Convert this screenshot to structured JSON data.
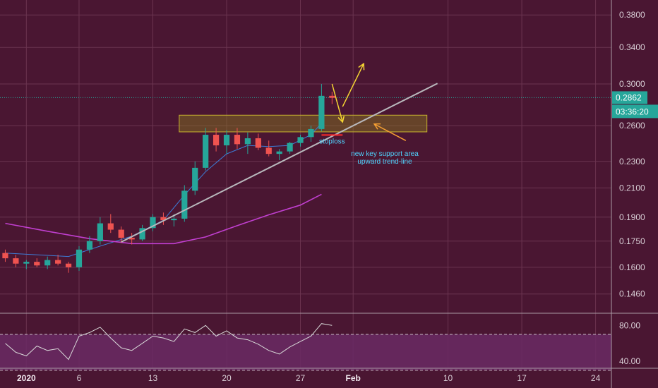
{
  "chart_data": [
    {
      "type": "candlestick",
      "title": "",
      "x_axis": {
        "ticks": [
          "2020",
          "6",
          "13",
          "20",
          "27",
          "Feb",
          "10",
          "17",
          "24"
        ],
        "range": [
          "2019-12-30",
          "2020-02-26"
        ]
      },
      "y_axis": {
        "scale": "log",
        "ticks": [
          0.38,
          0.34,
          0.3,
          0.26,
          0.23,
          0.21,
          0.19,
          0.175,
          0.16,
          0.146
        ],
        "tick_labels": [
          "0.3800",
          "0.3400",
          "0.3000",
          "0.2600",
          "0.2300",
          "0.2100",
          "0.1900",
          "0.1750",
          "0.1600",
          "0.1460"
        ],
        "range": [
          0.137,
          0.4
        ]
      },
      "last_price": {
        "value": 0.2862,
        "label": "0.2862",
        "countdown": "03:36:20",
        "color": "#26a69a"
      },
      "moving_averages": [
        {
          "color": "#3d7cd6",
          "points": [
            [
              "2019-12-30",
              0.168
            ],
            [
              "2020-01-05",
              0.166
            ],
            [
              "2020-01-08",
              0.172
            ],
            [
              "2020-01-11",
              0.178
            ],
            [
              "2020-01-14",
              0.188
            ],
            [
              "2020-01-16",
              0.205
            ],
            [
              "2020-01-18",
              0.222
            ],
            [
              "2020-01-20",
              0.236
            ],
            [
              "2020-01-22",
              0.243
            ],
            [
              "2020-01-24",
              0.242
            ],
            [
              "2020-01-26",
              0.243
            ],
            [
              "2020-01-28",
              0.252
            ],
            [
              "2020-01-29",
              0.262
            ]
          ]
        },
        {
          "color": "#c03fcf",
          "points": [
            [
              "2019-12-30",
              0.186
            ],
            [
              "2020-01-03",
              0.181
            ],
            [
              "2020-01-07",
              0.1765
            ],
            [
              "2020-01-11",
              0.1735
            ],
            [
              "2020-01-15",
              0.1735
            ],
            [
              "2020-01-18",
              0.1775
            ],
            [
              "2020-01-21",
              0.1845
            ],
            [
              "2020-01-24",
              0.1915
            ],
            [
              "2020-01-27",
              0.198
            ],
            [
              "2020-01-29",
              0.2055
            ]
          ]
        }
      ],
      "trend_line": {
        "from": [
          "2020-01-10",
          0.1745
        ],
        "to": [
          "2020-02-09",
          0.3005
        ],
        "color": "#b9b9bd"
      },
      "support_zone": {
        "date_from": "2020-01-16",
        "date_to": "2020-02-08",
        "price_low": 0.2545,
        "price_high": 0.2695
      },
      "stoploss": {
        "label": "stoploss",
        "price": 0.2518,
        "date_from": "2020-01-29",
        "date_to": "2020-01-31"
      },
      "annotations": [
        {
          "lines": [
            "new key support area",
            "upward trend-line"
          ],
          "anchor_date": "2020-02-04",
          "price": 0.2345
        }
      ],
      "arrows": [
        {
          "color": "#f5d533",
          "from": [
            "2020-01-30",
            0.3
          ],
          "to": [
            "2020-01-31",
            0.2632
          ]
        },
        {
          "color": "#f5d533",
          "from": [
            "2020-01-31",
            0.2775
          ],
          "to": [
            "2020-02-02",
            0.3215
          ]
        },
        {
          "color": "#f59f33",
          "from": [
            "2020-02-06",
            0.247
          ],
          "to": [
            "2020-02-03",
            0.2615
          ]
        }
      ],
      "candles": [
        [
          "2019-12-30",
          0.168,
          0.17,
          0.163,
          0.165
        ],
        [
          "2019-12-31",
          0.165,
          0.167,
          0.16,
          0.162
        ],
        [
          "2020-01-01",
          0.162,
          0.164,
          0.159,
          0.163
        ],
        [
          "2020-01-02",
          0.163,
          0.165,
          0.16,
          0.161
        ],
        [
          "2020-01-03",
          0.161,
          0.166,
          0.159,
          0.164
        ],
        [
          "2020-01-04",
          0.164,
          0.167,
          0.161,
          0.162
        ],
        [
          "2020-01-05",
          0.162,
          0.163,
          0.157,
          0.16
        ],
        [
          "2020-01-06",
          0.16,
          0.172,
          0.158,
          0.17
        ],
        [
          "2020-01-07",
          0.17,
          0.178,
          0.168,
          0.175
        ],
        [
          "2020-01-08",
          0.175,
          0.19,
          0.173,
          0.186
        ],
        [
          "2020-01-09",
          0.186,
          0.192,
          0.18,
          0.182
        ],
        [
          "2020-01-10",
          0.182,
          0.184,
          0.174,
          0.177
        ],
        [
          "2020-01-11",
          0.177,
          0.18,
          0.173,
          0.176
        ],
        [
          "2020-01-12",
          0.176,
          0.185,
          0.175,
          0.183
        ],
        [
          "2020-01-13",
          0.183,
          0.192,
          0.181,
          0.19
        ],
        [
          "2020-01-14",
          0.19,
          0.193,
          0.185,
          0.188
        ],
        [
          "2020-01-15",
          0.188,
          0.192,
          0.184,
          0.189
        ],
        [
          "2020-01-16",
          0.189,
          0.212,
          0.187,
          0.208
        ],
        [
          "2020-01-17",
          0.208,
          0.23,
          0.205,
          0.225
        ],
        [
          "2020-01-18",
          0.225,
          0.258,
          0.223,
          0.252
        ],
        [
          "2020-01-19",
          0.252,
          0.258,
          0.238,
          0.243
        ],
        [
          "2020-01-20",
          0.243,
          0.256,
          0.236,
          0.252
        ],
        [
          "2020-01-21",
          0.252,
          0.258,
          0.24,
          0.244
        ],
        [
          "2020-01-22",
          0.244,
          0.254,
          0.236,
          0.249
        ],
        [
          "2020-01-23",
          0.249,
          0.253,
          0.239,
          0.241
        ],
        [
          "2020-01-24",
          0.241,
          0.247,
          0.234,
          0.236
        ],
        [
          "2020-01-25",
          0.236,
          0.24,
          0.231,
          0.238
        ],
        [
          "2020-01-26",
          0.238,
          0.246,
          0.236,
          0.245
        ],
        [
          "2020-01-27",
          0.245,
          0.252,
          0.242,
          0.25
        ],
        [
          "2020-01-28",
          0.25,
          0.26,
          0.246,
          0.257
        ],
        [
          "2020-01-29",
          0.257,
          0.3,
          0.255,
          0.288
        ],
        [
          "2020-01-30",
          0.288,
          0.292,
          0.28,
          0.286
        ]
      ]
    },
    {
      "type": "line",
      "title": "",
      "y_axis": {
        "ticks": [
          80,
          40
        ],
        "tick_labels": [
          "80.00",
          "40.00"
        ],
        "range": [
          33,
          92
        ]
      },
      "band": [
        70,
        30
      ],
      "color": "#d8d8d8",
      "x": [
        "2019-12-30",
        "2019-12-31",
        "2020-01-01",
        "2020-01-02",
        "2020-01-03",
        "2020-01-04",
        "2020-01-05",
        "2020-01-06",
        "2020-01-07",
        "2020-01-08",
        "2020-01-09",
        "2020-01-10",
        "2020-01-11",
        "2020-01-12",
        "2020-01-13",
        "2020-01-14",
        "2020-01-15",
        "2020-01-16",
        "2020-01-17",
        "2020-01-18",
        "2020-01-19",
        "2020-01-20",
        "2020-01-21",
        "2020-01-22",
        "2020-01-23",
        "2020-01-24",
        "2020-01-25",
        "2020-01-26",
        "2020-01-27",
        "2020-01-28",
        "2020-01-29",
        "2020-01-30"
      ],
      "values": [
        60,
        50,
        46,
        57,
        52,
        54,
        42,
        68,
        72,
        78,
        66,
        55,
        52,
        60,
        68,
        66,
        62,
        76,
        72,
        80,
        68,
        74,
        66,
        64,
        59,
        52,
        48,
        56,
        62,
        68,
        82,
        80
      ]
    }
  ]
}
